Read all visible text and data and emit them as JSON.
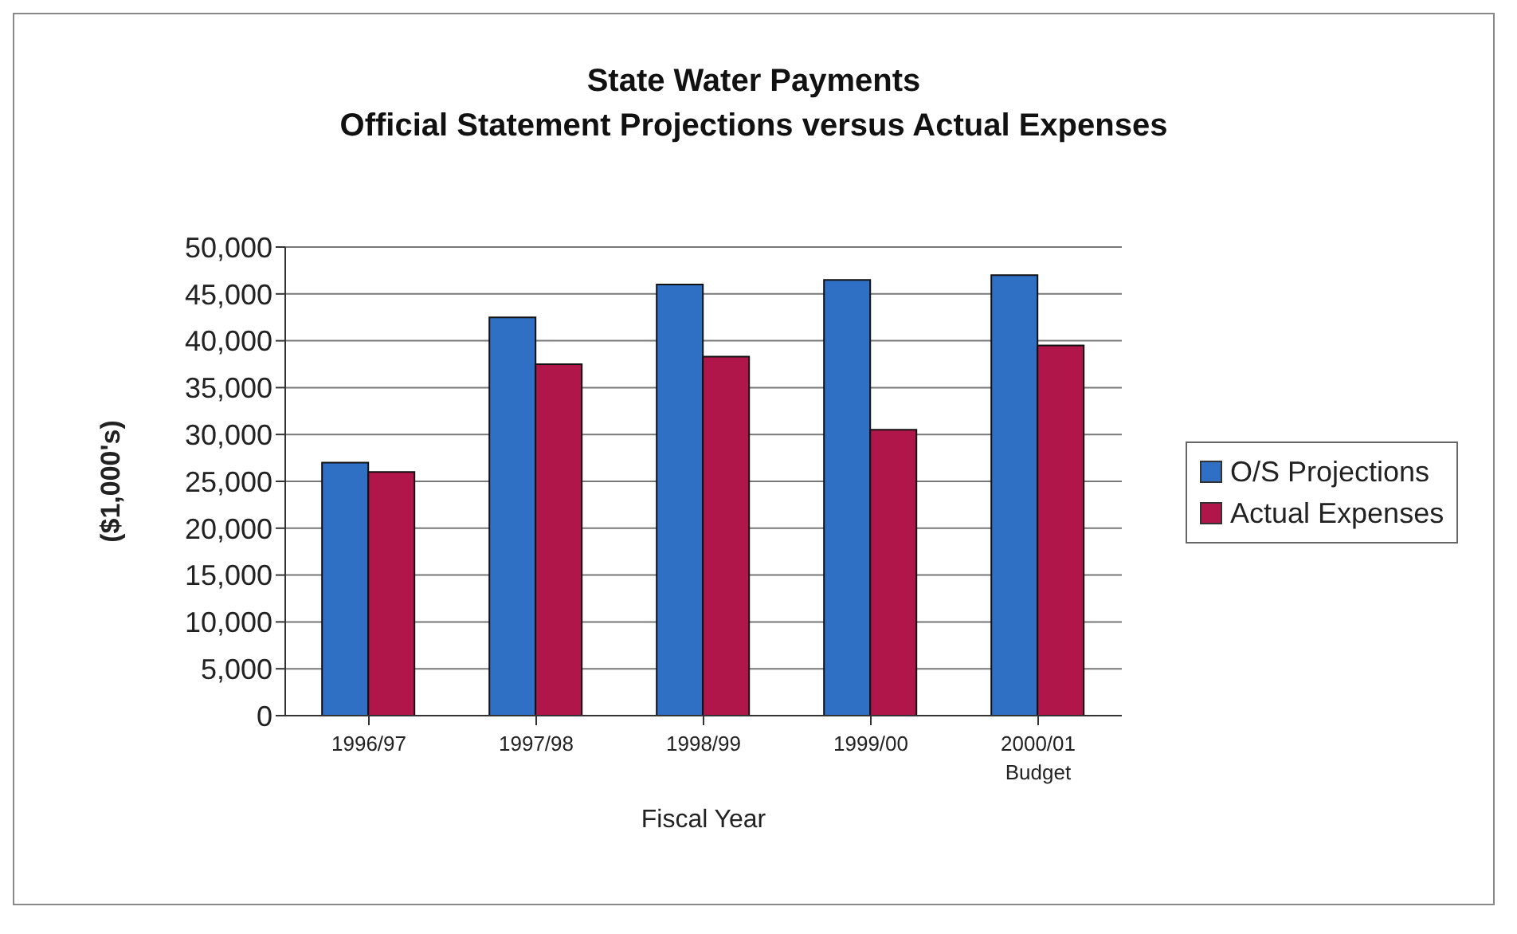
{
  "chart_data": {
    "type": "bar",
    "title": "State Water Payments\nOfficial Statement Projections versus Actual Expenses",
    "xlabel": "Fiscal Year",
    "ylabel": "($1,000's)",
    "categories": [
      "1996/97",
      "1997/98",
      "1998/99",
      "1999/00",
      "2000/01\nBudget"
    ],
    "series": [
      {
        "name": "O/S Projections",
        "color": "#2f6fc4",
        "values": [
          27000,
          42500,
          46000,
          46500,
          47000
        ]
      },
      {
        "name": "Actual Expenses",
        "color": "#b0164a",
        "values": [
          26000,
          37500,
          38300,
          30500,
          39500
        ]
      }
    ],
    "ylim": [
      0,
      50000
    ],
    "yticks": [
      0,
      {
        "value": 5000,
        "label": "5,000"
      },
      {
        "value": 10000,
        "label": "10,000"
      },
      {
        "value": 15000,
        "label": "15,000"
      },
      {
        "value": 20000,
        "label": "20,000"
      },
      {
        "value": 25000,
        "label": "25,000"
      },
      {
        "value": 30000,
        "label": "30,000"
      },
      {
        "value": 35000,
        "label": "35,000"
      },
      {
        "value": 40000,
        "label": "40,000"
      },
      {
        "value": 45000,
        "label": "45,000"
      },
      {
        "value": 50000,
        "label": "50,000"
      }
    ],
    "grid": "y",
    "legend": "right"
  }
}
